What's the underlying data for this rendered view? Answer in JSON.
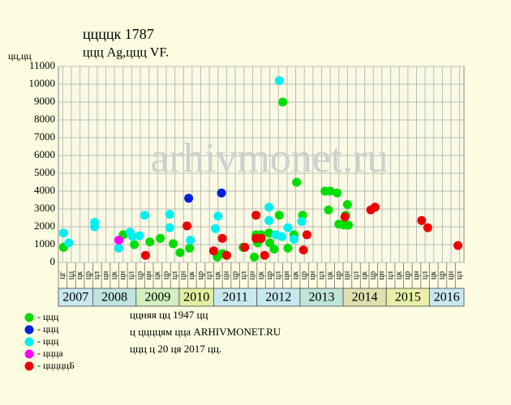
{
  "chart_data": {
    "type": "scatter",
    "title": "ццццк 1787",
    "subtitle": "ццц Ag,ццц VF.",
    "y_label": "цц,цц",
    "watermark": "arhivmonet.ru",
    "notes": [
      "ццняя цц 1947 цц",
      "ц ццццям цца ARHIVMONET.RU",
      "ццц ц 20 ця 2017 цц."
    ],
    "ylim": [
      0,
      11000
    ],
    "yticks": [
      0,
      1000,
      2000,
      3000,
      4000,
      5000,
      6000,
      7000,
      8000,
      9000,
      10000,
      11000
    ],
    "xlim": [
      0,
      47
    ],
    "x_labels": [
      "цг",
      "цд",
      "цк",
      "цр",
      "цл",
      "цн",
      "цк",
      "цн",
      "цл",
      "цр",
      "цн",
      "цк",
      "цр",
      "цл",
      "цн",
      "цк",
      "цр",
      "цл",
      "цк",
      "цн",
      "цр",
      "цл",
      "цн",
      "цк",
      "цр",
      "цл",
      "цн",
      "цк",
      "цр",
      "цн",
      "цл",
      "цк",
      "цр",
      "цн",
      "цл",
      "цк",
      "цр",
      "цн",
      "цл",
      "цк",
      "цр",
      "цн",
      "цл",
      "цк",
      "цр",
      "цн",
      "цл"
    ],
    "year_bands": [
      {
        "label": "2007",
        "color": "#c8e8f0",
        "span": 4
      },
      {
        "label": "2008",
        "color": "#bfe4e0",
        "span": 5
      },
      {
        "label": "2009",
        "color": "#d0f0c0",
        "span": 5
      },
      {
        "label": "2010",
        "color": "#e0f0a0",
        "span": 4
      },
      {
        "label": "2011",
        "color": "#c8e8f0",
        "span": 5
      },
      {
        "label": "2012",
        "color": "#c8e8f0",
        "span": 5
      },
      {
        "label": "2013",
        "color": "#bfe4d8",
        "span": 5
      },
      {
        "label": "2014",
        "color": "#e0e0b0",
        "span": 5
      },
      {
        "label": "2015",
        "color": "#e8f0a8",
        "span": 5
      },
      {
        "label": "2016",
        "color": "#c8e8f0",
        "span": 4
      }
    ],
    "series": [
      {
        "name": "- ццц",
        "color": "#00dd00",
        "x": [
          0.6,
          7.5,
          8.8,
          10.6,
          11.8,
          13.3,
          14.1,
          15.2,
          18.4,
          19,
          21.4,
          22.7,
          22.9,
          23.1,
          23.5,
          24.4,
          24.5,
          25,
          25.6,
          26,
          26.6,
          27.3,
          27.6,
          28.3,
          30.9,
          31.3,
          31.5,
          32.3,
          32.5,
          33.1,
          33.6,
          33.5,
          33.3
        ],
        "values": [
          850,
          1550,
          1000,
          1150,
          1350,
          1050,
          550,
          800,
          300,
          500,
          850,
          300,
          1550,
          1100,
          1550,
          1650,
          1100,
          750,
          2650,
          9000,
          800,
          1550,
          4500,
          2650,
          4000,
          2950,
          4000,
          3900,
          2150,
          2100,
          2100,
          3250,
          2650
        ]
      },
      {
        "name": "- ццц",
        "color": "#0022dd",
        "x": [
          15.1,
          18.9
        ],
        "values": [
          3600,
          3900
        ]
      },
      {
        "name": "- ццц",
        "color": "#00f0f0",
        "x": [
          0.6,
          1.2,
          4.2,
          4.2,
          7,
          8.3,
          8.6,
          9.4,
          10,
          12.9,
          12.9,
          15.3,
          18.5,
          18.2,
          24.4,
          24.4,
          25.2,
          25.6,
          25.9,
          26.6,
          27.3,
          28.2
        ],
        "values": [
          1650,
          1100,
          2250,
          2000,
          800,
          1700,
          1450,
          1500,
          2650,
          2700,
          1950,
          1250,
          2600,
          1900,
          3100,
          2350,
          1550,
          10200,
          1450,
          1950,
          1300,
          2300
        ]
      },
      {
        "name": "- ццца",
        "color": "#ff00ff",
        "x": [
          7
        ],
        "values": [
          1250
        ]
      },
      {
        "name": "- цццццБ",
        "color": "#ee0000",
        "x": [
          10.1,
          14.9,
          18,
          19,
          19.5,
          21.6,
          22.9,
          22.9,
          23.5,
          23.9,
          28.4,
          28.8,
          33.2,
          36.2,
          36.7,
          42.1,
          42.8,
          46.3
        ],
        "values": [
          400,
          2050,
          650,
          1350,
          400,
          850,
          2650,
          1350,
          1350,
          400,
          700,
          1550,
          2550,
          2950,
          3100,
          2350,
          1950,
          950
        ]
      }
    ]
  }
}
